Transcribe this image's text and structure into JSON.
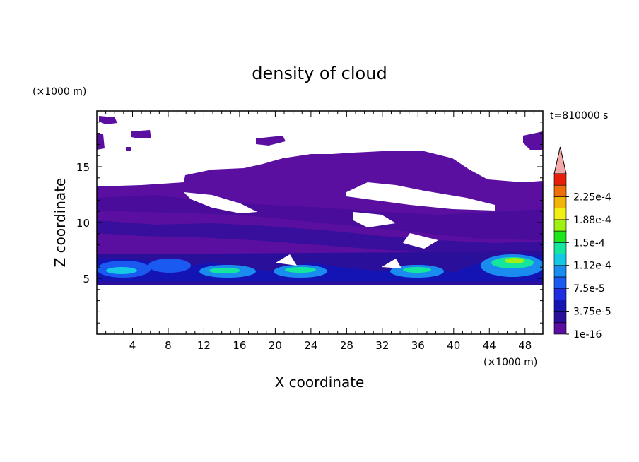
{
  "chart_data": {
    "type": "heatmap",
    "title": "density of cloud",
    "xlabel": "X coordinate",
    "ylabel": "Z coordinate",
    "x_unit": "(×1000 m)",
    "y_unit": "(×1000 m)",
    "time_label": "t=810000 s",
    "xlim": [
      0,
      50
    ],
    "ylim": [
      0,
      20
    ],
    "x_ticks": [
      4,
      8,
      12,
      16,
      20,
      24,
      28,
      32,
      36,
      40,
      44,
      48
    ],
    "y_ticks": [
      5,
      10,
      15
    ],
    "colorbar": {
      "labels": [
        "1e-16",
        "3.75e-5",
        "7.5e-5",
        "1.12e-4",
        "1.5e-4",
        "1.88e-4",
        "2.25e-4"
      ],
      "levels": [
        1e-16,
        1.875e-05,
        3.75e-05,
        5.625e-05,
        7.5e-05,
        9.375e-05,
        0.0001125,
        0.00013125,
        0.00015,
        0.00016875,
        0.0001875,
        0.00020625,
        0.000225,
        0.00024375
      ],
      "colors": [
        "#5a0fa0",
        "#2a0f9a",
        "#1414b4",
        "#1e2ee0",
        "#1a5af0",
        "#1a8cf0",
        "#14c8e6",
        "#14e6a0",
        "#1ee61e",
        "#a0f014",
        "#f0f014",
        "#f0b40a",
        "#f06e0a",
        "#e61e0a"
      ],
      "over_color": "#f4a8a8"
    },
    "regions": [
      {
        "desc": "upper broad cloud layer",
        "z_range": [
          8,
          16.5
        ],
        "level": "1e-16"
      },
      {
        "desc": "scattered high cloud cells",
        "z_range": [
          17,
          19.5
        ],
        "level": "1e-16"
      },
      {
        "desc": "lower dense cloud band",
        "z_range": [
          4.5,
          7.5
        ],
        "level_max": "1.88e-4"
      }
    ],
    "grid": false
  }
}
